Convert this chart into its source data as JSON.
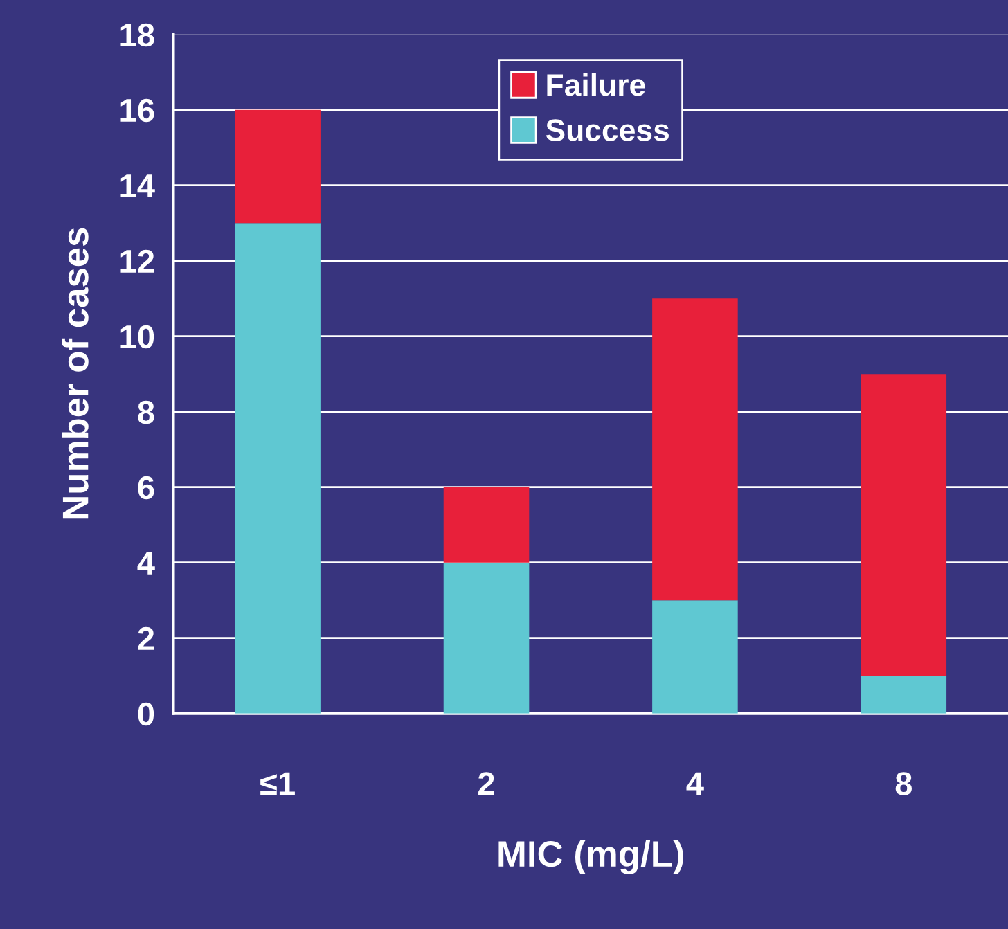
{
  "chart_data": {
    "type": "bar",
    "stacked": true,
    "xlabel": "MIC (mg/L)",
    "ylabel": "Number of cases",
    "categories": [
      "≤1",
      "2",
      "4",
      "8"
    ],
    "series": [
      {
        "name": "Success",
        "color": "#5fc8d2",
        "values": [
          13,
          4,
          3,
          1
        ]
      },
      {
        "name": "Failure",
        "color": "#e8203a",
        "values": [
          3,
          2,
          8,
          8
        ]
      }
    ],
    "ylim": [
      0,
      18
    ],
    "yticks": [
      0,
      2,
      4,
      6,
      8,
      10,
      12,
      14,
      16,
      18
    ],
    "grid": "y",
    "legend": "top"
  }
}
